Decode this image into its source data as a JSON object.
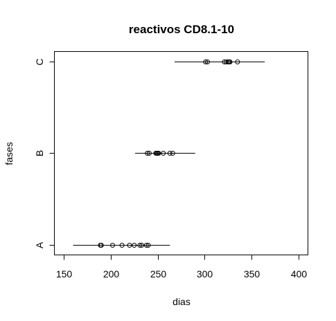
{
  "chart_data": {
    "type": "scatter",
    "title": "reactivos CD8.1-10",
    "xlabel": "dias",
    "ylabel": "fases",
    "xlim": [
      140,
      410
    ],
    "xticks": [
      150,
      200,
      250,
      300,
      350,
      400
    ],
    "categories": [
      "A",
      "B",
      "C"
    ],
    "series": [
      {
        "category": "A",
        "interval": [
          160,
          263
        ],
        "points": [
          189,
          190,
          202,
          212,
          220,
          225,
          231,
          233,
          238,
          240
        ]
      },
      {
        "category": "B",
        "interval": [
          226,
          290
        ],
        "points": [
          239,
          241,
          248,
          249,
          250,
          251,
          256,
          263,
          266
        ]
      },
      {
        "category": "C",
        "interval": [
          268,
          364
        ],
        "points": [
          301,
          303,
          321,
          323,
          325,
          326,
          327,
          335
        ]
      }
    ],
    "grid": false,
    "legend": "none"
  }
}
